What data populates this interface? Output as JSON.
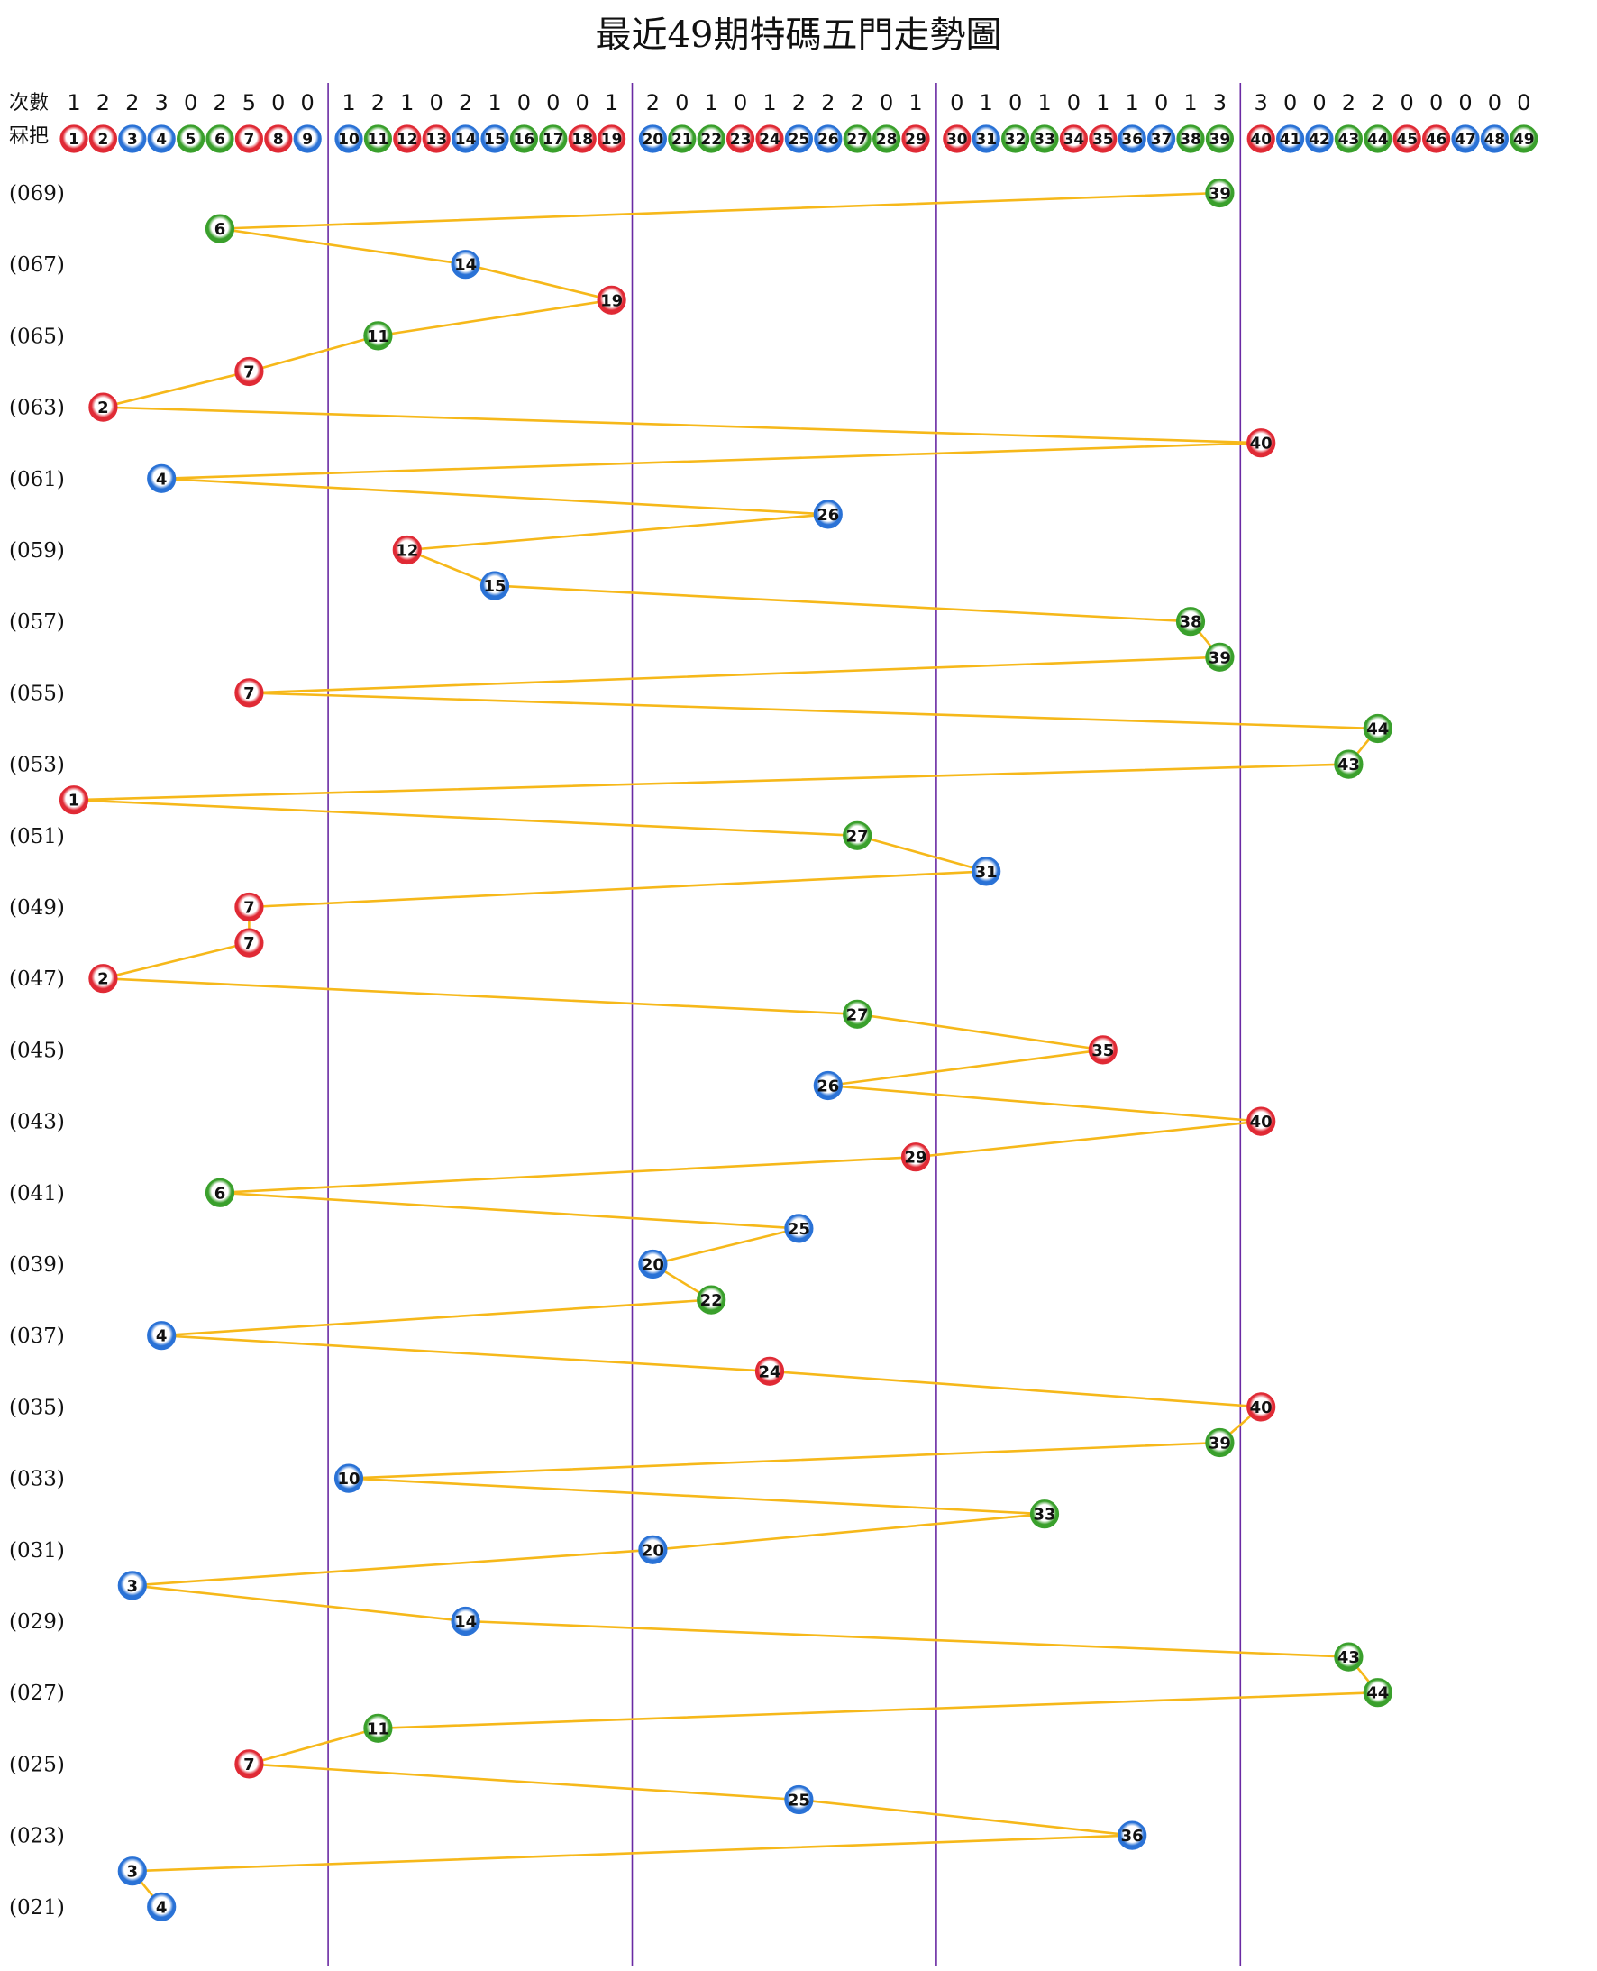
{
  "colors": {
    "red": "#e02a35",
    "blue": "#2a72d6",
    "green": "#3aa02c",
    "line": "#f6b81a",
    "divider": "#6a2aa3"
  },
  "chart_data": {
    "type": "line",
    "title": "最近49期特碼五門走勢圖",
    "count_label": "次數",
    "ball_label": "冧把",
    "numbers": [
      1,
      2,
      3,
      4,
      5,
      6,
      7,
      8,
      9,
      10,
      11,
      12,
      13,
      14,
      15,
      16,
      17,
      18,
      19,
      20,
      21,
      22,
      23,
      24,
      25,
      26,
      27,
      28,
      29,
      30,
      31,
      32,
      33,
      34,
      35,
      36,
      37,
      38,
      39,
      40,
      41,
      42,
      43,
      44,
      45,
      46,
      47,
      48,
      49
    ],
    "counts": [
      1,
      2,
      2,
      3,
      0,
      2,
      5,
      0,
      0,
      1,
      2,
      1,
      0,
      2,
      1,
      0,
      0,
      0,
      1,
      2,
      0,
      1,
      0,
      1,
      2,
      2,
      2,
      0,
      1,
      0,
      1,
      0,
      1,
      0,
      1,
      1,
      0,
      1,
      3,
      3,
      0,
      0,
      2,
      2,
      0,
      0,
      0,
      0,
      0
    ],
    "ball_colors": [
      "red",
      "red",
      "blue",
      "blue",
      "green",
      "green",
      "red",
      "red",
      "blue",
      "blue",
      "green",
      "red",
      "red",
      "blue",
      "blue",
      "green",
      "green",
      "red",
      "red",
      "blue",
      "green",
      "green",
      "red",
      "red",
      "blue",
      "blue",
      "green",
      "green",
      "red",
      "red",
      "blue",
      "green",
      "green",
      "red",
      "red",
      "blue",
      "blue",
      "green",
      "green",
      "red",
      "blue",
      "blue",
      "green",
      "green",
      "red",
      "red",
      "blue",
      "blue",
      "green"
    ],
    "groups": [
      {
        "name": "1-9",
        "range": [
          1,
          9
        ]
      },
      {
        "name": "10-19",
        "range": [
          10,
          19
        ]
      },
      {
        "name": "20-29",
        "range": [
          20,
          29
        ]
      },
      {
        "name": "30-39",
        "range": [
          30,
          39
        ]
      },
      {
        "name": "40-49",
        "range": [
          40,
          49
        ]
      }
    ],
    "period_labels": [
      "(069)",
      "(067)",
      "(065)",
      "(063)",
      "(061)",
      "(059)",
      "(057)",
      "(055)",
      "(053)",
      "(051)",
      "(049)",
      "(047)",
      "(045)",
      "(043)",
      "(041)",
      "(039)",
      "(037)",
      "(035)",
      "(033)",
      "(031)",
      "(029)",
      "(027)",
      "(025)",
      "(023)",
      "(021)"
    ],
    "draws": [
      {
        "period": "069",
        "number": 39
      },
      {
        "period": "068",
        "number": 6
      },
      {
        "period": "067",
        "number": 14
      },
      {
        "period": "066",
        "number": 19
      },
      {
        "period": "065",
        "number": 11
      },
      {
        "period": "064",
        "number": 7
      },
      {
        "period": "063",
        "number": 2
      },
      {
        "period": "062",
        "number": 40
      },
      {
        "period": "061",
        "number": 4
      },
      {
        "period": "060",
        "number": 26
      },
      {
        "period": "059",
        "number": 12
      },
      {
        "period": "058",
        "number": 15
      },
      {
        "period": "057",
        "number": 38
      },
      {
        "period": "056",
        "number": 39
      },
      {
        "period": "055",
        "number": 7
      },
      {
        "period": "054",
        "number": 44
      },
      {
        "period": "053",
        "number": 43
      },
      {
        "period": "052",
        "number": 1
      },
      {
        "period": "051",
        "number": 27
      },
      {
        "period": "050",
        "number": 31
      },
      {
        "period": "049",
        "number": 7
      },
      {
        "period": "048",
        "number": 7
      },
      {
        "period": "047",
        "number": 2
      },
      {
        "period": "046",
        "number": 27
      },
      {
        "period": "045",
        "number": 35
      },
      {
        "period": "044",
        "number": 26
      },
      {
        "period": "043",
        "number": 40
      },
      {
        "period": "042",
        "number": 29
      },
      {
        "period": "041",
        "number": 6
      },
      {
        "period": "040",
        "number": 25
      },
      {
        "period": "039",
        "number": 20
      },
      {
        "period": "038",
        "number": 22
      },
      {
        "period": "037",
        "number": 4
      },
      {
        "period": "036",
        "number": 24
      },
      {
        "period": "035",
        "number": 40
      },
      {
        "period": "034",
        "number": 39
      },
      {
        "period": "033",
        "number": 10
      },
      {
        "period": "032",
        "number": 33
      },
      {
        "period": "031",
        "number": 20
      },
      {
        "period": "030",
        "number": 3
      },
      {
        "period": "029",
        "number": 14
      },
      {
        "period": "028",
        "number": 43
      },
      {
        "period": "027",
        "number": 44
      },
      {
        "period": "026",
        "number": 11
      },
      {
        "period": "025",
        "number": 7
      },
      {
        "period": "024",
        "number": 25
      },
      {
        "period": "023",
        "number": 36
      },
      {
        "period": "022",
        "number": 3
      },
      {
        "period": "021",
        "number": 4
      }
    ]
  }
}
